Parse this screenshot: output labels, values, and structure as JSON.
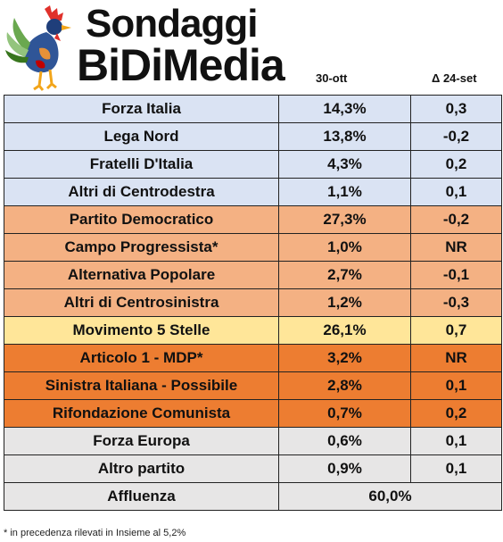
{
  "brand": {
    "line1": "Sondaggi",
    "line2": "BiDiMedia"
  },
  "columns": {
    "date": "30-ott",
    "delta": "Δ 24-set"
  },
  "rows": [
    {
      "party": "Forza Italia",
      "value": "14,3%",
      "delta": "0,3",
      "group": "cdx"
    },
    {
      "party": "Lega Nord",
      "value": "13,8%",
      "delta": "-0,2",
      "group": "cdx"
    },
    {
      "party": "Fratelli D'Italia",
      "value": "4,3%",
      "delta": "0,2",
      "group": "cdx"
    },
    {
      "party": "Altri di Centrodestra",
      "value": "1,1%",
      "delta": "0,1",
      "group": "cdx"
    },
    {
      "party": "Partito Democratico",
      "value": "27,3%",
      "delta": "-0,2",
      "group": "csx"
    },
    {
      "party": "Campo Progressista*",
      "value": "1,0%",
      "delta": "NR",
      "group": "csx"
    },
    {
      "party": "Alternativa Popolare",
      "value": "2,7%",
      "delta": "-0,1",
      "group": "csx"
    },
    {
      "party": "Altri di Centrosinistra",
      "value": "1,2%",
      "delta": "-0,3",
      "group": "csx"
    },
    {
      "party": "Movimento 5 Stelle",
      "value": "26,1%",
      "delta": "0,7",
      "group": "m5s"
    },
    {
      "party": "Articolo 1 - MDP*",
      "value": "3,2%",
      "delta": "NR",
      "group": "sx"
    },
    {
      "party": "Sinistra Italiana - Possibile",
      "value": "2,8%",
      "delta": "0,1",
      "group": "sx"
    },
    {
      "party": "Rifondazione Comunista",
      "value": "0,7%",
      "delta": "0,2",
      "group": "sx"
    },
    {
      "party": "Forza Europa",
      "value": "0,6%",
      "delta": "0,1",
      "group": "oth"
    },
    {
      "party": "Altro partito",
      "value": "0,9%",
      "delta": "0,1",
      "group": "oth"
    }
  ],
  "turnout": {
    "label": "Affluenza",
    "value": "60,0%"
  },
  "footnote": "* in precedenza rilevati in Insieme al 5,2%",
  "colors": {
    "centrodestra": "#dae3f3",
    "centrosinistra": "#f4b183",
    "m5s": "#ffe699",
    "sinistra": "#ed7d31",
    "altri": "#e7e6e6"
  },
  "icons": {
    "logo": "rooster-logo-icon"
  }
}
